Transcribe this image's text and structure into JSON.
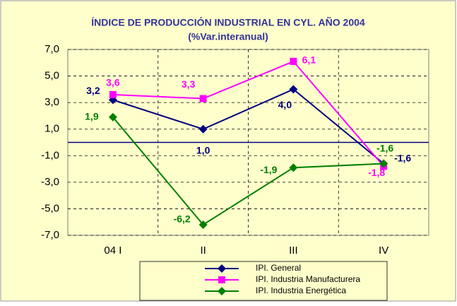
{
  "chart_data": {
    "type": "line",
    "title": "ÍNDICE DE PRODUCCIÓN INDUSTRIAL EN CYL. AÑO 2004",
    "subtitle": "(%Var.interanual)",
    "categories": [
      "04 I",
      "II",
      "III",
      "IV"
    ],
    "series": [
      {
        "name": "IPI. General",
        "color": "#000080",
        "marker": "diamond",
        "values": [
          3.2,
          1.0,
          4.0,
          -1.6
        ],
        "value_labels": [
          "3,2",
          "1,0",
          "4,0",
          "-1,6"
        ]
      },
      {
        "name": "IPI. Industria Manufacturera",
        "color": "#ff00ff",
        "marker": "square",
        "values": [
          3.6,
          3.3,
          6.1,
          -1.8
        ],
        "value_labels": [
          "3,6",
          "3,3",
          "6,1",
          "-1,8"
        ]
      },
      {
        "name": "IPI. Industria Energética",
        "color": "#008000",
        "marker": "diamond",
        "values": [
          1.9,
          -6.2,
          -1.9,
          -1.6
        ],
        "value_labels": [
          "1,9",
          "-6,2",
          "-1,9",
          "-1,6"
        ]
      }
    ],
    "ylim": [
      -7,
      7
    ],
    "yticks": [
      {
        "value": -7,
        "label": "-7,0"
      },
      {
        "value": -5,
        "label": "-5,0"
      },
      {
        "value": -3,
        "label": "-3,0"
      },
      {
        "value": -1,
        "label": "-1,0"
      },
      {
        "value": 1,
        "label": "1,0"
      },
      {
        "value": 3,
        "label": "3,0"
      },
      {
        "value": 5,
        "label": "5,0"
      },
      {
        "value": 7,
        "label": "7,0"
      }
    ],
    "grid": true,
    "legend": "bottom"
  }
}
